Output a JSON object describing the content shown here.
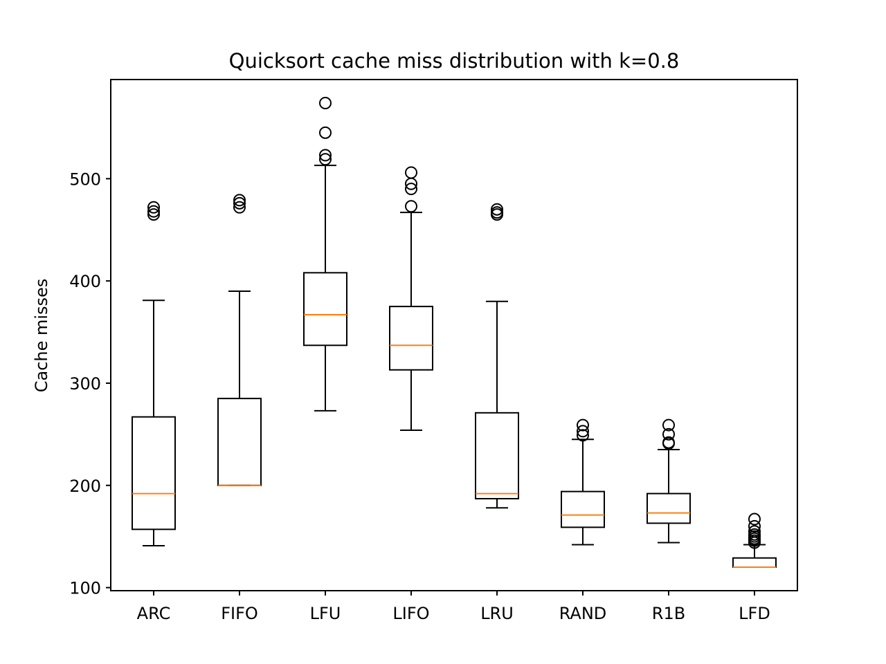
{
  "chart_data": {
    "type": "box",
    "title": "Quicksort cache miss distribution with k=0.8",
    "xlabel": "",
    "ylabel": "Cache misses",
    "ylim": [
      97,
      597
    ],
    "yticks": [
      100,
      200,
      300,
      400,
      500
    ],
    "grid": false,
    "categories": [
      "ARC",
      "FIFO",
      "LFU",
      "LIFO",
      "LRU",
      "RAND",
      "R1B",
      "LFD"
    ],
    "boxes": [
      {
        "label": "ARC",
        "whisker_low": 141,
        "q1": 157,
        "median": 192,
        "q3": 267,
        "whisker_high": 381,
        "outliers": [
          465,
          468,
          472
        ]
      },
      {
        "label": "FIFO",
        "whisker_low": 200,
        "q1": 200,
        "median": 200,
        "q3": 285,
        "whisker_high": 390,
        "outliers": [
          472,
          476,
          479
        ]
      },
      {
        "label": "LFU",
        "whisker_low": 273,
        "q1": 337,
        "median": 367,
        "q3": 408,
        "whisker_high": 513,
        "outliers": [
          519,
          523,
          545,
          574
        ]
      },
      {
        "label": "LIFO",
        "whisker_low": 254,
        "q1": 313,
        "median": 337,
        "q3": 375,
        "whisker_high": 467,
        "outliers": [
          473,
          490,
          495,
          506
        ]
      },
      {
        "label": "LRU",
        "whisker_low": 178,
        "q1": 187,
        "median": 192,
        "q3": 271,
        "whisker_high": 380,
        "outliers": [
          465,
          467,
          470
        ]
      },
      {
        "label": "RAND",
        "whisker_low": 142,
        "q1": 159,
        "median": 171,
        "q3": 194,
        "whisker_high": 245,
        "outliers": [
          249,
          253,
          259
        ]
      },
      {
        "label": "R1B",
        "whisker_low": 144,
        "q1": 163,
        "median": 173,
        "q3": 192,
        "whisker_high": 235,
        "outliers": [
          241,
          242,
          250,
          259
        ]
      },
      {
        "label": "LFD",
        "whisker_low": 120,
        "q1": 120,
        "median": 120,
        "q3": 129,
        "whisker_high": 142,
        "outliers": [
          144,
          146,
          148,
          150,
          152,
          155,
          160,
          167
        ]
      }
    ],
    "colors": {
      "box": "#000000",
      "median": "#ff7f0e",
      "background": "#ffffff"
    }
  }
}
